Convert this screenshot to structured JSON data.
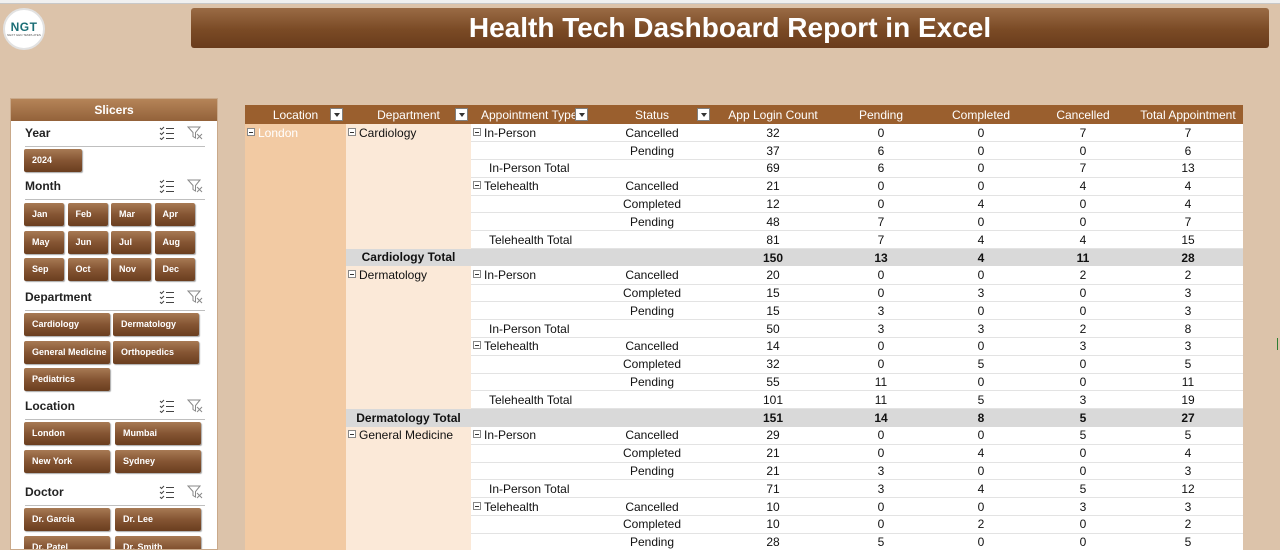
{
  "header": {
    "logo_text": "NGT",
    "logo_sub": "NEXT GEN TEMPLATES",
    "title": "Health Tech Dashboard Report in Excel"
  },
  "slicers": {
    "panel_title": "Slicers",
    "groups": [
      {
        "title": "Year",
        "items": [
          "2024"
        ]
      },
      {
        "title": "Month",
        "items": [
          "Jan",
          "Feb",
          "Mar",
          "Apr",
          "May",
          "Jun",
          "Jul",
          "Aug",
          "Sep",
          "Oct",
          "Nov",
          "Dec"
        ]
      },
      {
        "title": "Department",
        "items": [
          "Cardiology",
          "Dermatology",
          "General Medicine",
          "Orthopedics",
          "Pediatrics"
        ]
      },
      {
        "title": "Location",
        "items": [
          "London",
          "Mumbai",
          "New York",
          "Sydney"
        ]
      },
      {
        "title": "Doctor",
        "items": [
          "Dr. Garcia",
          "Dr. Lee",
          "Dr. Patel",
          "Dr. Smith"
        ]
      }
    ]
  },
  "pivot": {
    "columns": [
      "Location",
      "Department",
      "Appointment Type",
      "Status",
      "App Login Count",
      "Pending",
      "Completed",
      "Cancelled",
      "Total Appointment"
    ],
    "location": "London",
    "rows": [
      {
        "kind": "detail",
        "dept": "Cardiology",
        "type": "In-Person",
        "status": "Cancelled",
        "values": [
          "32",
          "0",
          "0",
          "7",
          "7"
        ]
      },
      {
        "kind": "detail",
        "dept": "",
        "type": "",
        "status": "Pending",
        "values": [
          "37",
          "6",
          "0",
          "0",
          "6"
        ]
      },
      {
        "kind": "subtotal",
        "dept": "",
        "type": "In-Person Total",
        "status": "",
        "values": [
          "69",
          "6",
          "0",
          "7",
          "13"
        ]
      },
      {
        "kind": "detail",
        "dept": "",
        "type": "Telehealth",
        "status": "Cancelled",
        "values": [
          "21",
          "0",
          "0",
          "4",
          "4"
        ]
      },
      {
        "kind": "detail",
        "dept": "",
        "type": "",
        "status": "Completed",
        "values": [
          "12",
          "0",
          "4",
          "0",
          "4"
        ]
      },
      {
        "kind": "detail",
        "dept": "",
        "type": "",
        "status": "Pending",
        "values": [
          "48",
          "7",
          "0",
          "0",
          "7"
        ]
      },
      {
        "kind": "subtotal",
        "dept": "",
        "type": "Telehealth Total",
        "status": "",
        "values": [
          "81",
          "7",
          "4",
          "4",
          "15"
        ]
      },
      {
        "kind": "total",
        "dept": "Cardiology Total",
        "type": "",
        "status": "",
        "values": [
          "150",
          "13",
          "4",
          "11",
          "28"
        ]
      },
      {
        "kind": "detail",
        "dept": "Dermatology",
        "type": "In-Person",
        "status": "Cancelled",
        "values": [
          "20",
          "0",
          "0",
          "2",
          "2"
        ]
      },
      {
        "kind": "detail",
        "dept": "",
        "type": "",
        "status": "Completed",
        "values": [
          "15",
          "0",
          "3",
          "0",
          "3"
        ]
      },
      {
        "kind": "detail",
        "dept": "",
        "type": "",
        "status": "Pending",
        "values": [
          "15",
          "3",
          "0",
          "0",
          "3"
        ]
      },
      {
        "kind": "subtotal",
        "dept": "",
        "type": "In-Person Total",
        "status": "",
        "values": [
          "50",
          "3",
          "3",
          "2",
          "8"
        ]
      },
      {
        "kind": "detail",
        "dept": "",
        "type": "Telehealth",
        "status": "Cancelled",
        "values": [
          "14",
          "0",
          "0",
          "3",
          "3"
        ]
      },
      {
        "kind": "detail",
        "dept": "",
        "type": "",
        "status": "Completed",
        "values": [
          "32",
          "0",
          "5",
          "0",
          "5"
        ]
      },
      {
        "kind": "detail",
        "dept": "",
        "type": "",
        "status": "Pending",
        "values": [
          "55",
          "11",
          "0",
          "0",
          "11"
        ]
      },
      {
        "kind": "subtotal",
        "dept": "",
        "type": "Telehealth Total",
        "status": "",
        "values": [
          "101",
          "11",
          "5",
          "3",
          "19"
        ]
      },
      {
        "kind": "total",
        "dept": "Dermatology Total",
        "type": "",
        "status": "",
        "values": [
          "151",
          "14",
          "8",
          "5",
          "27"
        ]
      },
      {
        "kind": "detail",
        "dept": "General Medicine",
        "type": "In-Person",
        "status": "Cancelled",
        "values": [
          "29",
          "0",
          "0",
          "5",
          "5"
        ]
      },
      {
        "kind": "detail",
        "dept": "",
        "type": "",
        "status": "Completed",
        "values": [
          "21",
          "0",
          "4",
          "0",
          "4"
        ]
      },
      {
        "kind": "detail",
        "dept": "",
        "type": "",
        "status": "Pending",
        "values": [
          "21",
          "3",
          "0",
          "0",
          "3"
        ]
      },
      {
        "kind": "subtotal",
        "dept": "",
        "type": "In-Person Total",
        "status": "",
        "values": [
          "71",
          "3",
          "4",
          "5",
          "12"
        ]
      },
      {
        "kind": "detail",
        "dept": "",
        "type": "Telehealth",
        "status": "Cancelled",
        "values": [
          "10",
          "0",
          "0",
          "3",
          "3"
        ]
      },
      {
        "kind": "detail",
        "dept": "",
        "type": "",
        "status": "Completed",
        "values": [
          "10",
          "0",
          "2",
          "0",
          "2"
        ]
      },
      {
        "kind": "detail",
        "dept": "",
        "type": "",
        "status": "Pending",
        "values": [
          "28",
          "5",
          "0",
          "0",
          "5"
        ]
      }
    ]
  },
  "colors": {
    "title_bar": "#7a4a25",
    "slicer_button": "#855533",
    "pivot_header": "#9a5f2e",
    "location_fill": "#f2caa3",
    "department_fill": "#fbe9d8",
    "total_fill": "#d9d9d9",
    "background": "#dcc3aa"
  }
}
